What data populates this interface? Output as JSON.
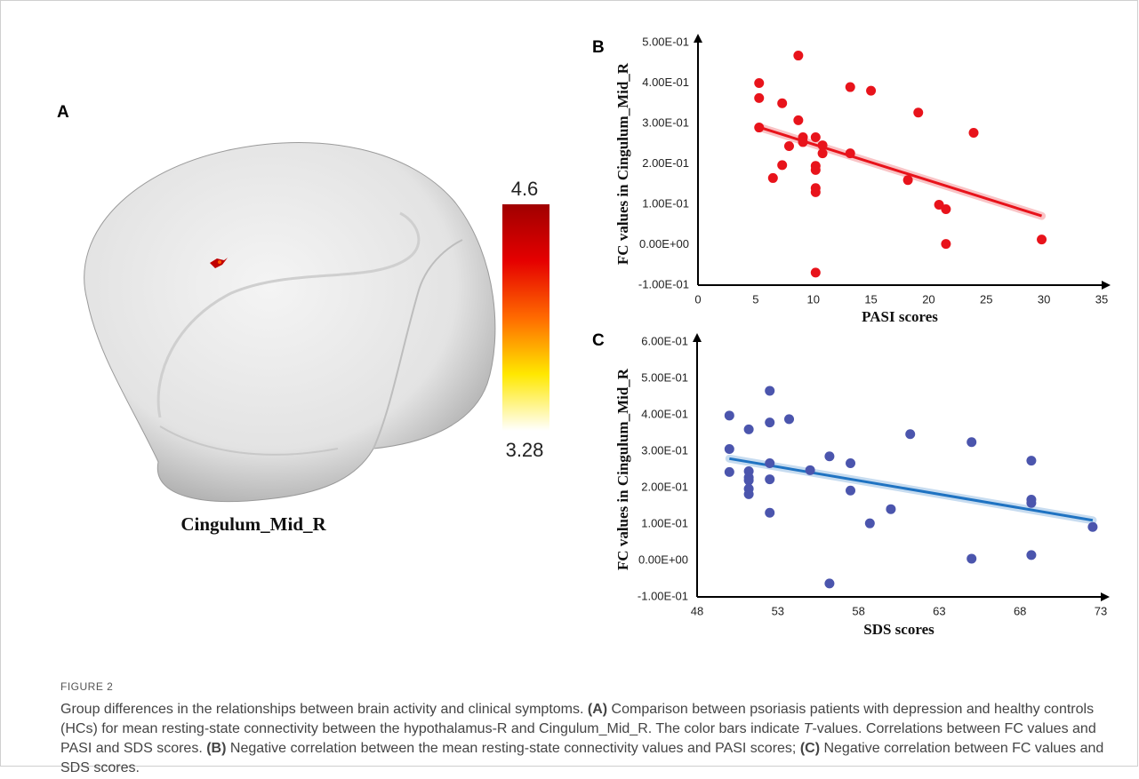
{
  "panel_labels": {
    "a": "A",
    "b": "B",
    "c": "C"
  },
  "brain": {
    "region_label": "Cingulum_Mid_R",
    "colorbar": {
      "max": 4.6,
      "min": 3.28,
      "colors": [
        "#a00000",
        "#e50000",
        "#ff6a00",
        "#ffe800",
        "#ffffff"
      ]
    }
  },
  "chart_data": [
    {
      "type": "scatter",
      "xlabel": "PASI scores",
      "ylabel": "FC values in Cingulum_Mid_R",
      "x": [
        5.3,
        5.3,
        5.3,
        6.5,
        7.3,
        7.3,
        7.9,
        8.7,
        8.7,
        9.1,
        9.1,
        10.2,
        10.2,
        10.2,
        10.2,
        10.2,
        10.2,
        10.8,
        10.8,
        13.2,
        13.2,
        15.0,
        18.2,
        19.1,
        20.9,
        21.5,
        21.5,
        23.9,
        29.8
      ],
      "series": [
        {
          "color": "#e8131b",
          "values": [
            0.4,
            0.363,
            0.29,
            0.165,
            0.35,
            0.197,
            0.244,
            0.468,
            0.308,
            0.266,
            0.254,
            0.266,
            0.195,
            0.185,
            0.14,
            0.13,
            -0.069,
            0.246,
            0.226,
            0.39,
            0.226,
            0.381,
            0.16,
            0.327,
            0.099,
            0.088,
            0.002,
            0.277,
            0.013
          ]
        }
      ],
      "trendline": true,
      "trendline_color": "#e8131b",
      "xlim": [
        0,
        35
      ],
      "xticks": [
        0,
        5,
        10,
        15,
        20,
        25,
        30,
        35
      ],
      "ylim": [
        -0.1,
        0.5
      ],
      "yticks": [
        {
          "value": -0.1,
          "label": "-1.00E-01"
        },
        {
          "value": 0,
          "label": "0.00E+00"
        },
        {
          "value": 0.1,
          "label": "1.00E-01"
        },
        {
          "value": 0.2,
          "label": "2.00E-01"
        },
        {
          "value": 0.3,
          "label": "3.00E-01"
        },
        {
          "value": 0.4,
          "label": "4.00E-01"
        },
        {
          "value": 0.5,
          "label": "5.00E-01"
        }
      ],
      "grid": false
    },
    {
      "type": "scatter",
      "xlabel": "SDS scores",
      "ylabel": "FC values in Cingulum_Mid_R",
      "x": [
        50.0,
        50.0,
        50.0,
        51.2,
        51.2,
        51.2,
        51.2,
        51.2,
        51.2,
        52.5,
        52.5,
        52.5,
        52.5,
        52.5,
        53.7,
        55.0,
        56.2,
        56.2,
        57.5,
        57.5,
        58.7,
        60.0,
        61.2,
        65.0,
        65.0,
        68.7,
        68.7,
        68.7,
        68.7,
        72.5
      ],
      "series": [
        {
          "color": "#4b55ad",
          "values": [
            0.398,
            0.306,
            0.243,
            0.36,
            0.245,
            0.228,
            0.22,
            0.197,
            0.182,
            0.466,
            0.379,
            0.267,
            0.223,
            0.131,
            0.388,
            0.248,
            0.286,
            -0.063,
            0.267,
            0.192,
            0.102,
            0.141,
            0.347,
            0.325,
            0.005,
            0.274,
            0.167,
            0.158,
            0.015,
            0.092
          ]
        }
      ],
      "trendline": true,
      "trendline_color": "#1f73c2",
      "xlim": [
        48,
        73
      ],
      "xticks": [
        48,
        53,
        58,
        63,
        68,
        73
      ],
      "ylim": [
        -0.1,
        0.6
      ],
      "yticks": [
        {
          "value": -0.1,
          "label": "-1.00E-01"
        },
        {
          "value": 0,
          "label": "0.00E+00"
        },
        {
          "value": 0.1,
          "label": "1.00E-01"
        },
        {
          "value": 0.2,
          "label": "2.00E-01"
        },
        {
          "value": 0.3,
          "label": "3.00E-01"
        },
        {
          "value": 0.4,
          "label": "4.00E-01"
        },
        {
          "value": 0.5,
          "label": "5.00E-01"
        },
        {
          "value": 0.6,
          "label": "6.00E-01"
        }
      ],
      "grid": false
    }
  ],
  "caption": {
    "label": "FIGURE 2",
    "runs": [
      "Group differences in the relationships between brain activity and clinical symptoms. ",
      "(A)",
      " Comparison between psoriasis patients with depression and healthy controls (HCs) for mean resting-state connectivity between the hypothalamus-R and Cingulum_Mid_R. The color bars indicate ",
      "T",
      "-values. Correlations between FC values and PASI and SDS scores. ",
      "(B)",
      " Negative correlation between the mean resting-state connectivity values and PASI scores; ",
      "(C)",
      " Negative correlation between FC values and SDS scores."
    ]
  }
}
